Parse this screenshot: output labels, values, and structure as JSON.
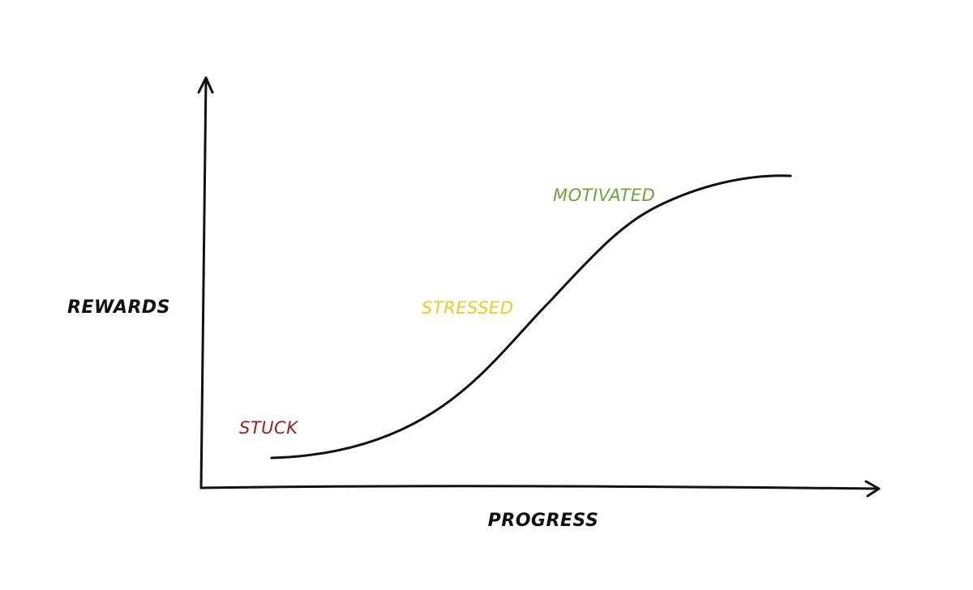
{
  "axes": {
    "y_label": "REWARDS",
    "x_label": "PROGRESS"
  },
  "stages": [
    {
      "label": "STUCK"
    },
    {
      "label": "STRESSED"
    },
    {
      "label": "MOTIVATED"
    }
  ]
}
